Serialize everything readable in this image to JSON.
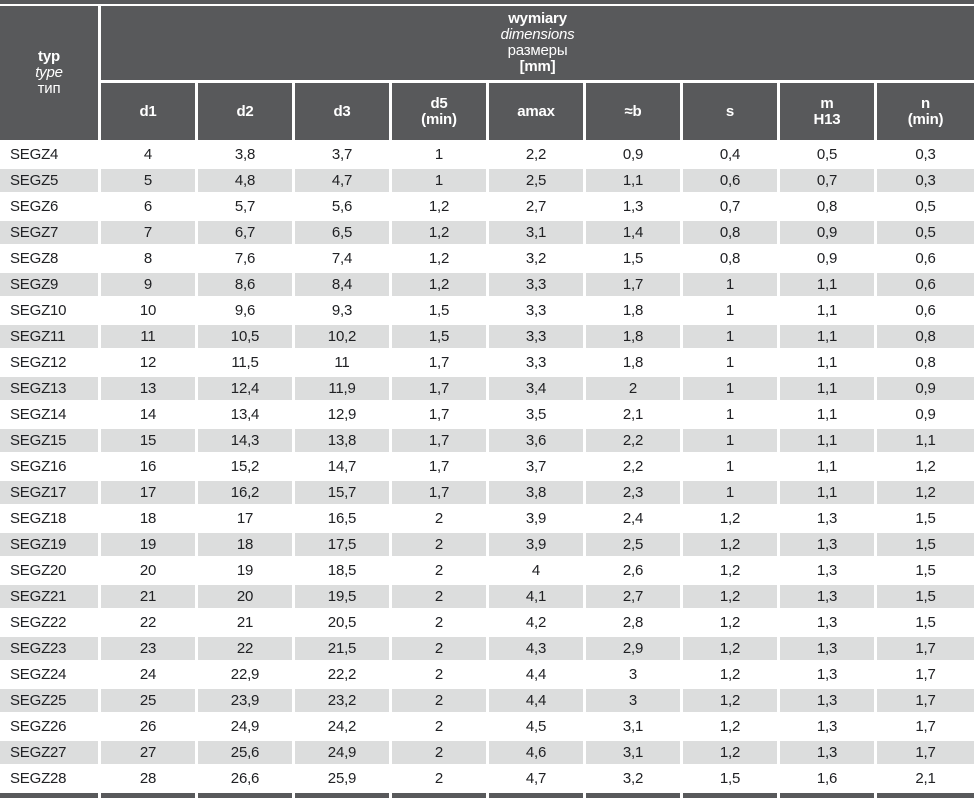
{
  "table": {
    "corner": {
      "line1": "typ",
      "line2": "type",
      "line3": "тип"
    },
    "group_header": {
      "line1": "wymiary",
      "line2": "dimensions",
      "line3": "размеры",
      "line4": "[mm]"
    },
    "columns": [
      {
        "label": "d1"
      },
      {
        "label": "d2"
      },
      {
        "label": "d3"
      },
      {
        "label": "d5",
        "sub": "(min)"
      },
      {
        "label": "amax"
      },
      {
        "label": "≈b"
      },
      {
        "label": "s"
      },
      {
        "label": "m",
        "sub": "H13"
      },
      {
        "label": "n",
        "sub": "(min)"
      }
    ],
    "rows": [
      {
        "type": "SEGZ4",
        "values": [
          "4",
          "3,8",
          "3,7",
          "1",
          "2,2",
          "0,9",
          "0,4",
          "0,5",
          "0,3"
        ]
      },
      {
        "type": "SEGZ5",
        "values": [
          "5",
          "4,8",
          "4,7",
          "1",
          "2,5",
          "1,1",
          "0,6",
          "0,7",
          "0,3"
        ]
      },
      {
        "type": "SEGZ6",
        "values": [
          "6",
          "5,7",
          "5,6",
          "1,2",
          "2,7",
          "1,3",
          "0,7",
          "0,8",
          "0,5"
        ]
      },
      {
        "type": "SEGZ7",
        "values": [
          "7",
          "6,7",
          "6,5",
          "1,2",
          "3,1",
          "1,4",
          "0,8",
          "0,9",
          "0,5"
        ]
      },
      {
        "type": "SEGZ8",
        "values": [
          "8",
          "7,6",
          "7,4",
          "1,2",
          "3,2",
          "1,5",
          "0,8",
          "0,9",
          "0,6"
        ]
      },
      {
        "type": "SEGZ9",
        "values": [
          "9",
          "8,6",
          "8,4",
          "1,2",
          "3,3",
          "1,7",
          "1",
          "1,1",
          "0,6"
        ]
      },
      {
        "type": "SEGZ10",
        "values": [
          "10",
          "9,6",
          "9,3",
          "1,5",
          "3,3",
          "1,8",
          "1",
          "1,1",
          "0,6"
        ]
      },
      {
        "type": "SEGZ11",
        "values": [
          "11",
          "10,5",
          "10,2",
          "1,5",
          "3,3",
          "1,8",
          "1",
          "1,1",
          "0,8"
        ]
      },
      {
        "type": "SEGZ12",
        "values": [
          "12",
          "11,5",
          "11",
          "1,7",
          "3,3",
          "1,8",
          "1",
          "1,1",
          "0,8"
        ]
      },
      {
        "type": "SEGZ13",
        "values": [
          "13",
          "12,4",
          "11,9",
          "1,7",
          "3,4",
          "2",
          "1",
          "1,1",
          "0,9"
        ]
      },
      {
        "type": "SEGZ14",
        "values": [
          "14",
          "13,4",
          "12,9",
          "1,7",
          "3,5",
          "2,1",
          "1",
          "1,1",
          "0,9"
        ]
      },
      {
        "type": "SEGZ15",
        "values": [
          "15",
          "14,3",
          "13,8",
          "1,7",
          "3,6",
          "2,2",
          "1",
          "1,1",
          "1,1"
        ]
      },
      {
        "type": "SEGZ16",
        "values": [
          "16",
          "15,2",
          "14,7",
          "1,7",
          "3,7",
          "2,2",
          "1",
          "1,1",
          "1,2"
        ]
      },
      {
        "type": "SEGZ17",
        "values": [
          "17",
          "16,2",
          "15,7",
          "1,7",
          "3,8",
          "2,3",
          "1",
          "1,1",
          "1,2"
        ]
      },
      {
        "type": "SEGZ18",
        "values": [
          "18",
          "17",
          "16,5",
          "2",
          "3,9",
          "2,4",
          "1,2",
          "1,3",
          "1,5"
        ]
      },
      {
        "type": "SEGZ19",
        "values": [
          "19",
          "18",
          "17,5",
          "2",
          "3,9",
          "2,5",
          "1,2",
          "1,3",
          "1,5"
        ]
      },
      {
        "type": "SEGZ20",
        "values": [
          "20",
          "19",
          "18,5",
          "2",
          "4",
          "2,6",
          "1,2",
          "1,3",
          "1,5"
        ]
      },
      {
        "type": "SEGZ21",
        "values": [
          "21",
          "20",
          "19,5",
          "2",
          "4,1",
          "2,7",
          "1,2",
          "1,3",
          "1,5"
        ]
      },
      {
        "type": "SEGZ22",
        "values": [
          "22",
          "21",
          "20,5",
          "2",
          "4,2",
          "2,8",
          "1,2",
          "1,3",
          "1,5"
        ]
      },
      {
        "type": "SEGZ23",
        "values": [
          "23",
          "22",
          "21,5",
          "2",
          "4,3",
          "2,9",
          "1,2",
          "1,3",
          "1,7"
        ]
      },
      {
        "type": "SEGZ24",
        "values": [
          "24",
          "22,9",
          "22,2",
          "2",
          "4,4",
          "3",
          "1,2",
          "1,3",
          "1,7"
        ]
      },
      {
        "type": "SEGZ25",
        "values": [
          "25",
          "23,9",
          "23,2",
          "2",
          "4,4",
          "3",
          "1,2",
          "1,3",
          "1,7"
        ]
      },
      {
        "type": "SEGZ26",
        "values": [
          "26",
          "24,9",
          "24,2",
          "2",
          "4,5",
          "3,1",
          "1,2",
          "1,3",
          "1,7"
        ]
      },
      {
        "type": "SEGZ27",
        "values": [
          "27",
          "25,6",
          "24,9",
          "2",
          "4,6",
          "3,1",
          "1,2",
          "1,3",
          "1,7"
        ]
      },
      {
        "type": "SEGZ28",
        "values": [
          "28",
          "26,6",
          "25,9",
          "2",
          "4,7",
          "3,2",
          "1,5",
          "1,6",
          "2,1"
        ]
      }
    ]
  },
  "colors": {
    "header_bg": "#58595b",
    "stripe_bg": "#dcdddd",
    "header_text": "#ffffff",
    "body_text": "#202124"
  }
}
